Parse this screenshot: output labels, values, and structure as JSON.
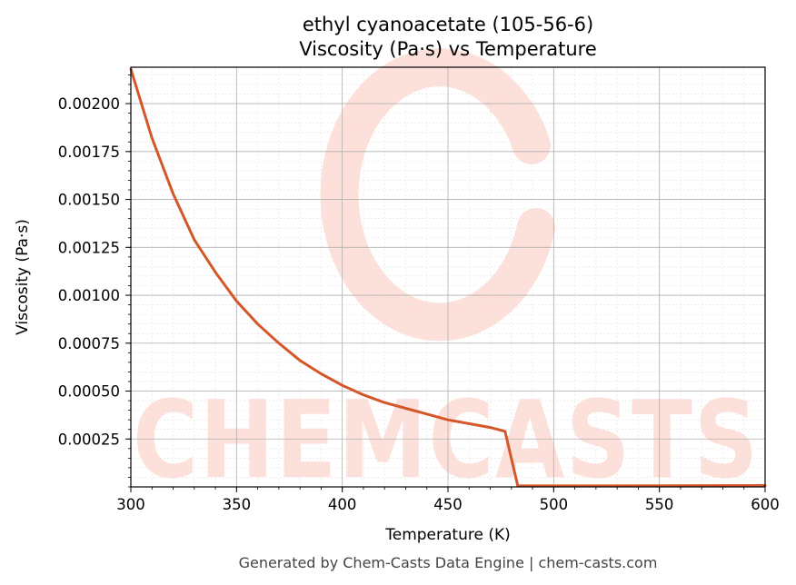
{
  "chart_data": {
    "type": "line",
    "title": "ethyl cyanoacetate (105-56-6)",
    "subtitle": "Viscosity (Pa·s) vs Temperature",
    "xlabel": "Temperature (K)",
    "ylabel": "Viscosity (Pa·s)",
    "xlim": [
      300,
      600
    ],
    "ylim": [
      0.0,
      0.00219
    ],
    "x_ticks": [
      300,
      350,
      400,
      450,
      500,
      550,
      600
    ],
    "x_tick_labels": [
      "300",
      "350",
      "400",
      "450",
      "500",
      "550",
      "600"
    ],
    "y_ticks": [
      0.00025,
      0.0005,
      0.00075,
      0.001,
      0.00125,
      0.0015,
      0.00175,
      0.002
    ],
    "y_tick_labels": [
      "0.00025",
      "0.00050",
      "0.00075",
      "0.00100",
      "0.00125",
      "0.00150",
      "0.00175",
      "0.00200"
    ],
    "grid": true,
    "series": [
      {
        "color": "#d4572a",
        "x": [
          300,
          310,
          320,
          330,
          340,
          350,
          360,
          370,
          380,
          390,
          400,
          410,
          420,
          430,
          440,
          450,
          460,
          470,
          477,
          483,
          490,
          500,
          550,
          600
        ],
        "y": [
          0.00218,
          0.00182,
          0.00153,
          0.00129,
          0.00112,
          0.00097,
          0.00085,
          0.00075,
          0.00066,
          0.00059,
          0.00053,
          0.00048,
          0.00044,
          0.00041,
          0.00038,
          0.00035,
          0.00033,
          0.00031,
          0.00029,
          5e-06,
          5e-06,
          5e-06,
          6e-06,
          7e-06
        ]
      }
    ]
  },
  "watermark": "CHEMCASTS",
  "footer": "Generated by Chem-Casts Data Engine | chem-casts.com",
  "colors": {
    "line": "#d4572a",
    "watermark": "#fde0da",
    "grid_major": "#b0b0b0",
    "grid_minor": "#e3e3e3"
  }
}
